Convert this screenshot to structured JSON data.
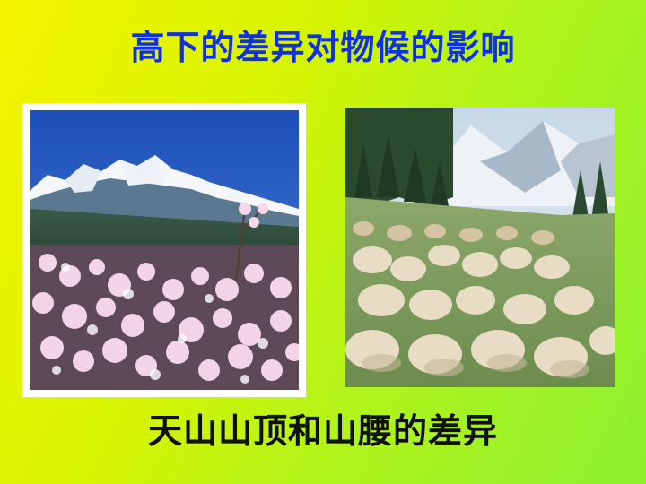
{
  "slide": {
    "title": "高下的差异对物候的影响",
    "caption": "天山山顶和山腰的差异"
  },
  "images": {
    "left": {
      "subject": "snowy mountain peaks with blooming flowers"
    },
    "right": {
      "subject": "flock of sheep grazing on mountain slope meadow"
    }
  },
  "colors": {
    "title": "#1030e8",
    "caption": "#101010",
    "background_start": "#f4f400",
    "background_end": "#8cf030"
  }
}
